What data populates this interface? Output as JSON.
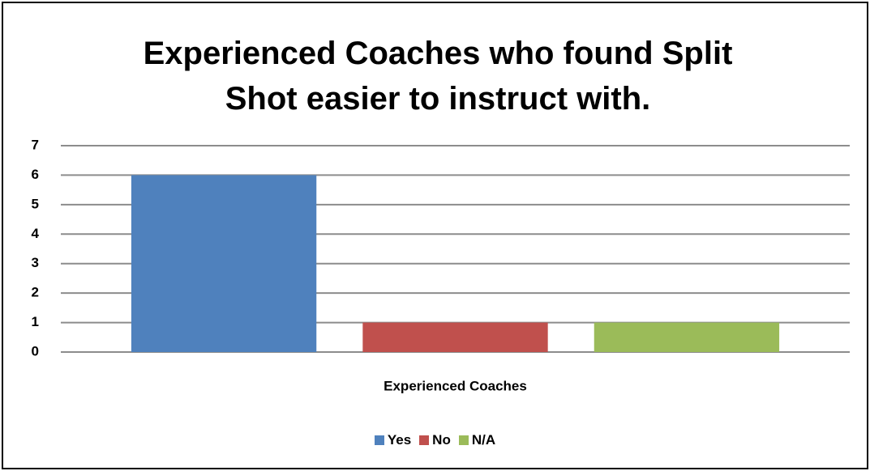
{
  "chart_data": {
    "type": "bar",
    "title": "Experienced Coaches who found Split Shot easier to instruct with.",
    "categories": [
      "Experienced Coaches"
    ],
    "series": [
      {
        "name": "Yes",
        "color": "#4f81bd",
        "values": [
          6
        ]
      },
      {
        "name": "No",
        "color": "#c0504d",
        "values": [
          1
        ]
      },
      {
        "name": "N/A",
        "color": "#9bbb59",
        "values": [
          1
        ]
      }
    ],
    "ylim": [
      0,
      7
    ],
    "yticks": [
      0,
      1,
      2,
      3,
      4,
      5,
      6,
      7
    ],
    "grid": true,
    "legend": "bottom"
  }
}
